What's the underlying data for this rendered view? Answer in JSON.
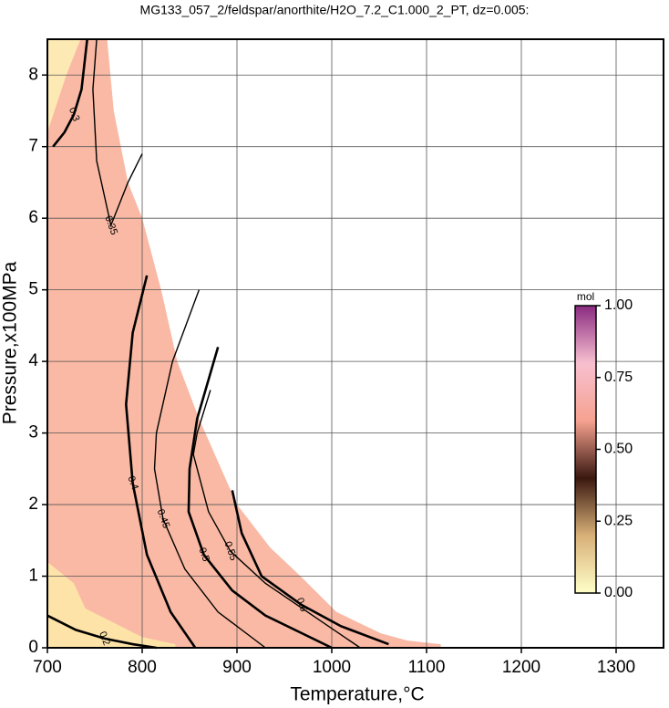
{
  "chart_data": {
    "type": "contour",
    "title": "MG133_057_2/feldspar/anorthite/H2O_7.2_C1.000_2_PT, dz=0.005:",
    "x_label": "Temperature,°C",
    "y_label": "Pressure,x100MPa",
    "xlim": [
      700,
      1350
    ],
    "ylim": [
      0,
      8.5
    ],
    "xticks": [
      700,
      800,
      900,
      1000,
      1100,
      1200,
      1300
    ],
    "yticks": [
      0,
      1,
      2,
      3,
      4,
      5,
      6,
      7,
      8
    ],
    "grid": true,
    "regions": [
      {
        "color": "#f9b9a4",
        "x": [
          703,
          763,
          770,
          785,
          800,
          820,
          837,
          860,
          880,
          900,
          935,
          967,
          1005,
          1052,
          1080,
          1115,
          1115,
          700,
          700
        ],
        "y": [
          8.5,
          8.5,
          7.5,
          6.5,
          6.0,
          5.0,
          4.0,
          3.2,
          2.6,
          2.0,
          1.4,
          1.0,
          0.5,
          0.2,
          0.1,
          0.05,
          0,
          0,
          8.5
        ]
      },
      {
        "color": "#fde3a8",
        "x": [
          700,
          728,
          740,
          770,
          800,
          835,
          835,
          700
        ],
        "y": [
          1.2,
          0.9,
          0.55,
          0.35,
          0.15,
          0.05,
          0,
          0
        ]
      },
      {
        "color": "#fde9b4",
        "x": [
          700,
          735,
          720,
          705,
          700
        ],
        "y": [
          8.5,
          8.5,
          8.0,
          7.4,
          7.2
        ]
      }
    ],
    "contours": [
      {
        "level": 0.2,
        "x": [
          700,
          730,
          760,
          790,
          815
        ],
        "y": [
          0.45,
          0.25,
          0.13,
          0.05,
          0
        ]
      },
      {
        "level": 0.3,
        "x": [
          742,
          736,
          728,
          718,
          706
        ],
        "y": [
          8.5,
          7.8,
          7.45,
          7.2,
          7.0
        ]
      },
      {
        "level": 0.35,
        "x": [
          752,
          748,
          752,
          767,
          785,
          800
        ],
        "y": [
          8.5,
          7.8,
          6.8,
          5.9,
          6.5,
          6.9
        ]
      },
      {
        "level": 0.4,
        "x": [
          805,
          790,
          783,
          790,
          805,
          830,
          856
        ],
        "y": [
          5.2,
          4.4,
          3.4,
          2.3,
          1.3,
          0.5,
          0
        ]
      },
      {
        "level": 0.45,
        "x": [
          860,
          832,
          815,
          813,
          822,
          845,
          880,
          930
        ],
        "y": [
          5.0,
          4.0,
          3.0,
          2.5,
          1.8,
          1.1,
          0.5,
          0
        ]
      },
      {
        "level": 0.5,
        "x": [
          880,
          858,
          850,
          849,
          865,
          895,
          930,
          1000
        ],
        "y": [
          4.2,
          3.2,
          2.5,
          1.9,
          1.3,
          0.8,
          0.45,
          0
        ]
      },
      {
        "level": 0.55,
        "x": [
          872,
          858,
          854,
          870,
          893,
          930,
          980,
          1030
        ],
        "y": [
          3.6,
          3.0,
          2.7,
          1.9,
          1.35,
          0.9,
          0.45,
          0
        ]
      },
      {
        "level": 0.6,
        "x": [
          895,
          905,
          926,
          968,
          1010,
          1060
        ],
        "y": [
          2.2,
          1.6,
          1.0,
          0.6,
          0.3,
          0.05
        ]
      }
    ],
    "colorbar": {
      "label": "mol",
      "clim": [
        0,
        1
      ],
      "ticks": [
        {
          "value": 0,
          "label": "0.00"
        },
        {
          "value": 0.25,
          "label": "0.25"
        },
        {
          "value": 0.5,
          "label": "0.50"
        },
        {
          "value": 0.75,
          "label": "0.75"
        },
        {
          "value": 1,
          "label": "1.00"
        }
      ],
      "colors": [
        "#ffffc8",
        "#d8b078",
        "#3a1810",
        "#f6a290",
        "#f7c0d0",
        "#8a2a80"
      ]
    }
  }
}
